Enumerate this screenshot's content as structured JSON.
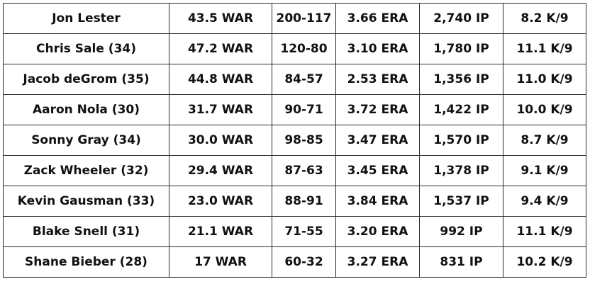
{
  "table": {
    "rows": [
      {
        "name": "Jon Lester",
        "war": "43.5 WAR",
        "record": "200-117",
        "era": "3.66 ERA",
        "ip": "2,740 IP",
        "k9": "8.2 K/9"
      },
      {
        "name": "Chris Sale (34)",
        "war": "47.2 WAR",
        "record": "120-80",
        "era": "3.10 ERA",
        "ip": "1,780 IP",
        "k9": "11.1 K/9"
      },
      {
        "name": "Jacob deGrom (35)",
        "war": "44.8 WAR",
        "record": "84-57",
        "era": "2.53 ERA",
        "ip": "1,356 IP",
        "k9": "11.0 K/9"
      },
      {
        "name": "Aaron Nola (30)",
        "war": "31.7 WAR",
        "record": "90-71",
        "era": "3.72 ERA",
        "ip": "1,422 IP",
        "k9": "10.0 K/9"
      },
      {
        "name": "Sonny Gray (34)",
        "war": "30.0 WAR",
        "record": "98-85",
        "era": "3.47 ERA",
        "ip": "1,570 IP",
        "k9": "8.7 K/9"
      },
      {
        "name": "Zack Wheeler (32)",
        "war": "29.4 WAR",
        "record": "87-63",
        "era": "3.45 ERA",
        "ip": "1,378 IP",
        "k9": "9.1 K/9"
      },
      {
        "name": "Kevin Gausman (33)",
        "war": "23.0 WAR",
        "record": "88-91",
        "era": "3.84 ERA",
        "ip": "1,537 IP",
        "k9": "9.4 K/9"
      },
      {
        "name": "Blake Snell (31)",
        "war": "21.1 WAR",
        "record": "71-55",
        "era": "3.20 ERA",
        "ip": "992 IP",
        "k9": "11.1 K/9"
      },
      {
        "name": "Shane Bieber (28)",
        "war": "17 WAR",
        "record": "60-32",
        "era": "3.27 ERA",
        "ip": "831 IP",
        "k9": "10.2 K/9"
      }
    ]
  }
}
